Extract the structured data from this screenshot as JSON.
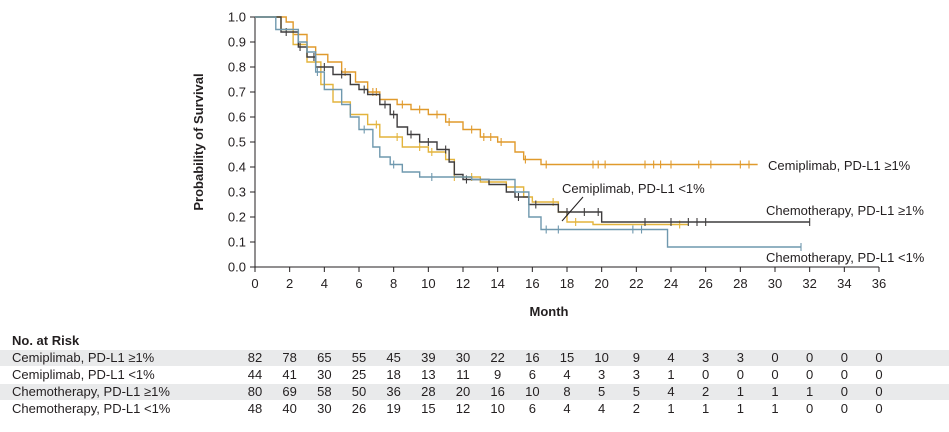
{
  "chart_data": {
    "type": "line",
    "subtype": "kaplan-meier",
    "ylabel": "Probability of Survival",
    "xlabel": "Month",
    "xlim": [
      0,
      36
    ],
    "ylim": [
      0,
      1.0
    ],
    "xticks": [
      "0",
      "2",
      "4",
      "6",
      "8",
      "10",
      "12",
      "14",
      "16",
      "18",
      "20",
      "22",
      "24",
      "26",
      "28",
      "30",
      "32",
      "34",
      "36"
    ],
    "yticks": [
      "0.0",
      "0.1",
      "0.2",
      "0.3",
      "0.4",
      "0.5",
      "0.6",
      "0.7",
      "0.8",
      "0.9",
      "1.0"
    ],
    "grid": false,
    "series": [
      {
        "name": "Cemiplimab, PD-L1 ≥1%",
        "color": "#e09a2c",
        "points": [
          [
            0,
            1.0
          ],
          [
            1.8,
            0.98
          ],
          [
            2.2,
            0.93
          ],
          [
            3.0,
            0.88
          ],
          [
            3.5,
            0.85
          ],
          [
            4.2,
            0.82
          ],
          [
            5.0,
            0.78
          ],
          [
            5.8,
            0.74
          ],
          [
            6.5,
            0.7
          ],
          [
            7.2,
            0.67
          ],
          [
            8.2,
            0.65
          ],
          [
            9.0,
            0.63
          ],
          [
            10.0,
            0.61
          ],
          [
            11.0,
            0.58
          ],
          [
            12.0,
            0.55
          ],
          [
            13.0,
            0.52
          ],
          [
            14.0,
            0.5
          ],
          [
            15.0,
            0.46
          ],
          [
            15.5,
            0.43
          ],
          [
            16.5,
            0.41
          ],
          [
            29.0,
            0.41
          ]
        ],
        "censor_x": [
          5.2,
          6.8,
          7.0,
          8.5,
          9.5,
          10.5,
          11.2,
          12.5,
          13.2,
          13.6,
          14.2,
          15.6,
          16.8,
          19.5,
          19.8,
          20.2,
          22.5,
          23.0,
          23.4,
          24.0,
          25.6,
          26.3,
          28.0,
          28.5
        ]
      },
      {
        "name": "Cemiplimab, PD-L1 <1%",
        "color": "#e3b43c",
        "points": [
          [
            0,
            1.0
          ],
          [
            1.5,
            0.95
          ],
          [
            2.2,
            0.89
          ],
          [
            3.0,
            0.82
          ],
          [
            3.8,
            0.73
          ],
          [
            4.5,
            0.66
          ],
          [
            5.5,
            0.61
          ],
          [
            6.5,
            0.57
          ],
          [
            7.2,
            0.52
          ],
          [
            8.5,
            0.48
          ],
          [
            10.0,
            0.46
          ],
          [
            11.0,
            0.43
          ],
          [
            11.5,
            0.36
          ],
          [
            13.0,
            0.34
          ],
          [
            14.5,
            0.32
          ],
          [
            15.5,
            0.28
          ],
          [
            16.0,
            0.26
          ],
          [
            17.5,
            0.22
          ],
          [
            18.0,
            0.18
          ],
          [
            19.5,
            0.17
          ],
          [
            25.0,
            0.17
          ]
        ],
        "censor_x": [
          7.0,
          8.2,
          9.5,
          10.2,
          11.5,
          12.5,
          17.2,
          18.5,
          24.5
        ]
      },
      {
        "name": "Chemotherapy, PD-L1 ≥1%",
        "color": "#3f3d3e",
        "points": [
          [
            0,
            1.0
          ],
          [
            1.5,
            0.94
          ],
          [
            2.5,
            0.88
          ],
          [
            3.0,
            0.84
          ],
          [
            3.5,
            0.8
          ],
          [
            4.5,
            0.77
          ],
          [
            5.5,
            0.73
          ],
          [
            6.0,
            0.71
          ],
          [
            6.5,
            0.69
          ],
          [
            7.2,
            0.65
          ],
          [
            7.8,
            0.61
          ],
          [
            8.2,
            0.56
          ],
          [
            8.8,
            0.53
          ],
          [
            9.5,
            0.5
          ],
          [
            10.5,
            0.47
          ],
          [
            11.2,
            0.42
          ],
          [
            11.5,
            0.37
          ],
          [
            12.0,
            0.35
          ],
          [
            13.5,
            0.33
          ],
          [
            14.5,
            0.3
          ],
          [
            15.0,
            0.28
          ],
          [
            15.8,
            0.25
          ],
          [
            17.5,
            0.22
          ],
          [
            20.0,
            0.18
          ],
          [
            32.0,
            0.18
          ]
        ],
        "censor_x": [
          1.8,
          2.6,
          3.4,
          4.0,
          5.0,
          6.3,
          7.5,
          8.0,
          9.0,
          10.0,
          11.0,
          12.2,
          15.2,
          16.2,
          18.0,
          19.0,
          19.8,
          22.5,
          24.0,
          25.0,
          25.5,
          26.0,
          32.0
        ]
      },
      {
        "name": "Chemotherapy, PD-L1 <1%",
        "color": "#6f98ae",
        "points": [
          [
            0,
            1.0
          ],
          [
            1.2,
            0.95
          ],
          [
            2.5,
            0.9
          ],
          [
            3.0,
            0.86
          ],
          [
            3.5,
            0.78
          ],
          [
            4.0,
            0.71
          ],
          [
            5.0,
            0.65
          ],
          [
            5.5,
            0.6
          ],
          [
            6.0,
            0.55
          ],
          [
            6.8,
            0.48
          ],
          [
            7.2,
            0.44
          ],
          [
            7.8,
            0.41
          ],
          [
            8.5,
            0.38
          ],
          [
            9.5,
            0.36
          ],
          [
            12.5,
            0.35
          ],
          [
            15.0,
            0.3
          ],
          [
            15.8,
            0.2
          ],
          [
            16.5,
            0.15
          ],
          [
            23.8,
            0.15
          ],
          [
            23.8,
            0.08
          ],
          [
            31.5,
            0.08
          ]
        ],
        "censor_x": [
          3.6,
          6.3,
          8.0,
          10.2,
          16.8,
          17.5,
          21.8,
          22.3,
          31.5
        ]
      }
    ]
  },
  "labels": {
    "cem_pos": "Cemiplimab, PD-L1 ≥1%",
    "cem_neg": "Cemiplimab, PD-L1 <1%",
    "chemo_pos": "Chemotherapy, PD-L1 ≥1%",
    "chemo_neg": "Chemotherapy, PD-L1 <1%"
  },
  "risk_table": {
    "title": "No. at Risk",
    "rows": [
      {
        "name": "Cemiplimab, PD-L1 ≥1%",
        "values": [
          "82",
          "78",
          "65",
          "55",
          "45",
          "39",
          "30",
          "22",
          "16",
          "15",
          "10",
          "9",
          "4",
          "3",
          "3",
          "0",
          "0",
          "0",
          "0"
        ]
      },
      {
        "name": "Cemiplimab, PD-L1 <1%",
        "values": [
          "44",
          "41",
          "30",
          "25",
          "18",
          "13",
          "11",
          "9",
          "6",
          "4",
          "3",
          "3",
          "1",
          "0",
          "0",
          "0",
          "0",
          "0",
          "0"
        ]
      },
      {
        "name": "Chemotherapy, PD-L1 ≥1%",
        "values": [
          "80",
          "69",
          "58",
          "50",
          "36",
          "28",
          "20",
          "16",
          "10",
          "8",
          "5",
          "5",
          "4",
          "2",
          "1",
          "1",
          "1",
          "0",
          "0"
        ]
      },
      {
        "name": "Chemotherapy, PD-L1 <1%",
        "values": [
          "48",
          "40",
          "30",
          "26",
          "19",
          "15",
          "12",
          "10",
          "6",
          "4",
          "4",
          "2",
          "1",
          "1",
          "1",
          "1",
          "0",
          "0",
          "0"
        ]
      }
    ]
  }
}
